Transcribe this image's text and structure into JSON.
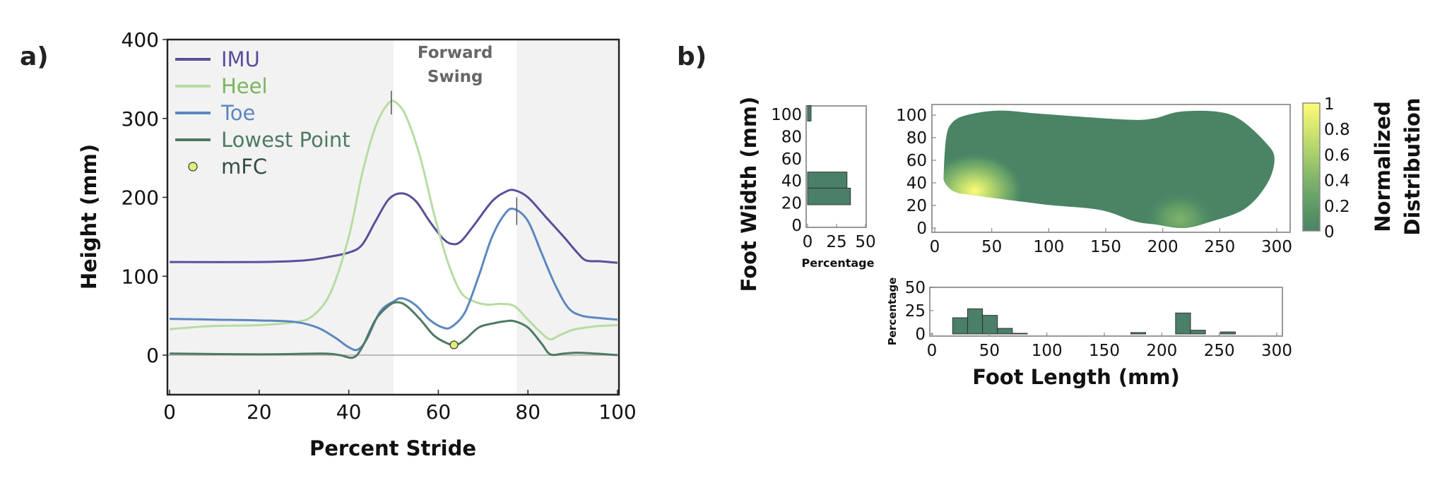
{
  "chart_data": [
    {
      "type": "line",
      "panel_label": "a)",
      "xlabel": "Percent Stride",
      "ylabel": "Height (mm)",
      "xlim": [
        0,
        100
      ],
      "ylim": [
        -50,
        400
      ],
      "xticks": [
        "0",
        "20",
        "40",
        "60",
        "80",
        "100"
      ],
      "yticks": [
        "0",
        "100",
        "200",
        "300",
        "400"
      ],
      "grid": false,
      "legend_placement": "top-left",
      "shaded_regions": [
        [
          0,
          50
        ],
        [
          77.5,
          100
        ]
      ],
      "shade_color": "#f2f2f2",
      "annotation": {
        "lines": [
          "Forward",
          "Swing"
        ],
        "x_range": [
          50,
          77.5
        ]
      },
      "series": [
        {
          "name": "IMU",
          "color": "#5a4e9a",
          "text_color": "#5a4e9a",
          "points": [
            [
              0,
              118
            ],
            [
              20,
              118
            ],
            [
              30,
              120
            ],
            [
              35,
              124
            ],
            [
              40,
              130
            ],
            [
              43,
              140
            ],
            [
              46,
              170
            ],
            [
              49,
              198
            ],
            [
              52,
              205
            ],
            [
              55,
              195
            ],
            [
              58,
              170
            ],
            [
              61,
              148
            ],
            [
              63,
              141
            ],
            [
              65,
              144
            ],
            [
              68,
              165
            ],
            [
              72,
              195
            ],
            [
              75,
              207
            ],
            [
              77,
              209
            ],
            [
              80,
              200
            ],
            [
              84,
              175
            ],
            [
              88,
              150
            ],
            [
              91,
              130
            ],
            [
              93,
              120
            ],
            [
              96,
              119
            ],
            [
              100,
              117
            ]
          ]
        },
        {
          "name": "Heel",
          "color": "#b7dca2",
          "text_color": "#7ab55c",
          "points": [
            [
              0,
              33
            ],
            [
              10,
              37
            ],
            [
              20,
              38
            ],
            [
              28,
              42
            ],
            [
              32,
              50
            ],
            [
              36,
              80
            ],
            [
              40,
              150
            ],
            [
              43,
              230
            ],
            [
              46,
              290
            ],
            [
              49,
              320
            ],
            [
              51,
              318
            ],
            [
              53,
              300
            ],
            [
              56,
              250
            ],
            [
              59,
              180
            ],
            [
              62,
              120
            ],
            [
              65,
              80
            ],
            [
              68,
              68
            ],
            [
              71,
              64
            ],
            [
              74,
              65
            ],
            [
              77,
              62
            ],
            [
              80,
              45
            ],
            [
              83,
              28
            ],
            [
              85,
              20
            ],
            [
              87,
              25
            ],
            [
              90,
              32
            ],
            [
              93,
              35
            ],
            [
              96,
              37
            ],
            [
              100,
              38
            ]
          ]
        },
        {
          "name": "Toe",
          "color": "#5b87c0",
          "text_color": "#5b87c0",
          "points": [
            [
              0,
              46
            ],
            [
              10,
              45
            ],
            [
              20,
              44
            ],
            [
              28,
              42
            ],
            [
              33,
              35
            ],
            [
              37,
              22
            ],
            [
              40,
              10
            ],
            [
              42,
              7
            ],
            [
              44,
              20
            ],
            [
              47,
              55
            ],
            [
              50,
              68
            ],
            [
              52,
              72
            ],
            [
              55,
              63
            ],
            [
              58,
              45
            ],
            [
              61,
              35
            ],
            [
              63,
              36
            ],
            [
              66,
              55
            ],
            [
              69,
              100
            ],
            [
              72,
              150
            ],
            [
              75,
              180
            ],
            [
              77,
              185
            ],
            [
              80,
              170
            ],
            [
              83,
              130
            ],
            [
              86,
              90
            ],
            [
              89,
              60
            ],
            [
              92,
              50
            ],
            [
              96,
              47
            ],
            [
              100,
              45
            ]
          ]
        },
        {
          "name": "Lowest Point",
          "color": "#4e7a62",
          "text_color": "#4e7a62",
          "points": [
            [
              0,
              2
            ],
            [
              20,
              1
            ],
            [
              34,
              2
            ],
            [
              38,
              0
            ],
            [
              41,
              -3
            ],
            [
              43,
              10
            ],
            [
              46,
              45
            ],
            [
              49,
              63
            ],
            [
              51,
              67
            ],
            [
              53,
              62
            ],
            [
              56,
              45
            ],
            [
              59,
              25
            ],
            [
              62,
              15
            ],
            [
              64,
              13
            ],
            [
              66,
              20
            ],
            [
              69,
              35
            ],
            [
              72,
              40
            ],
            [
              75,
              43
            ],
            [
              77,
              43
            ],
            [
              80,
              35
            ],
            [
              83,
              15
            ],
            [
              85,
              1
            ],
            [
              88,
              2
            ],
            [
              91,
              3
            ],
            [
              95,
              2
            ],
            [
              100,
              0
            ]
          ]
        }
      ],
      "marker": {
        "name": "mFC",
        "x": 63.5,
        "y": 13,
        "color": "#e3ee7a",
        "text_color": "#334d40"
      },
      "peak_marks": [
        {
          "x": 49.5,
          "y": [
            305,
            335
          ]
        },
        {
          "x": 77.5,
          "y": [
            165,
            200
          ]
        }
      ]
    },
    {
      "type": "heatmap",
      "panel_label": "b)",
      "ylabel": "Foot Width (mm)",
      "xlim": [
        0,
        300
      ],
      "ylim": [
        0,
        108
      ],
      "xticks": [
        "0",
        "50",
        "100",
        "150",
        "200",
        "250",
        "300"
      ],
      "yticks": [
        "0",
        "20",
        "40",
        "60",
        "80",
        "100"
      ],
      "outline": [
        [
          8,
          50
        ],
        [
          10,
          80
        ],
        [
          15,
          93
        ],
        [
          28,
          100
        ],
        [
          57,
          104
        ],
        [
          95,
          101
        ],
        [
          168,
          96
        ],
        [
          192,
          97
        ],
        [
          215,
          103
        ],
        [
          248,
          103
        ],
        [
          268,
          96
        ],
        [
          290,
          76
        ],
        [
          298,
          62
        ],
        [
          292,
          40
        ],
        [
          272,
          17
        ],
        [
          240,
          5
        ],
        [
          218,
          0
        ],
        [
          195,
          3
        ],
        [
          175,
          6
        ],
        [
          145,
          16
        ],
        [
          95,
          21
        ],
        [
          35,
          29
        ],
        [
          18,
          32
        ],
        [
          9,
          40
        ]
      ],
      "hotspots": [
        {
          "x": 35,
          "y": 33,
          "value": 1.0
        },
        {
          "x": 215,
          "y": 8,
          "value": 0.4
        }
      ],
      "colorbar": {
        "label": [
          "Normalized",
          "Distribution"
        ],
        "ticks": [
          "0",
          "0.2",
          "0.4",
          "0.6",
          "0.8",
          "1"
        ],
        "range": [
          0,
          1
        ],
        "colors": [
          "#4a8465",
          "#5f9a67",
          "#80b36a",
          "#a9cf6c",
          "#d3e76f",
          "#fffb78"
        ]
      }
    },
    {
      "type": "bar",
      "orientation": "horizontal",
      "xlabel": "Percentage",
      "xlim": [
        0,
        50
      ],
      "ylim": [
        0,
        108
      ],
      "xticks": [
        "0",
        "25",
        "50"
      ],
      "yticks": [
        "0",
        "20",
        "40",
        "60",
        "80",
        "100"
      ],
      "color": "#4a7f68",
      "bins": [
        [
          18.5,
          33.5,
          37
        ],
        [
          33.5,
          48,
          34
        ],
        [
          94,
          108,
          3
        ]
      ]
    },
    {
      "type": "bar",
      "orientation": "vertical",
      "xlabel": "Foot Length (mm)",
      "ylabel": "Percentage",
      "xlim": [
        0,
        300
      ],
      "ylim": [
        0,
        50
      ],
      "xticks": [
        "0",
        "50",
        "100",
        "150",
        "200",
        "250",
        "300"
      ],
      "yticks": [
        "0",
        "25",
        "50"
      ],
      "color": "#4a7f68",
      "bins": [
        [
          18,
          31,
          17.4
        ],
        [
          31,
          44,
          27
        ],
        [
          44,
          57,
          20
        ],
        [
          57,
          70,
          6
        ],
        [
          70,
          83,
          0.7
        ],
        [
          173,
          186,
          1.5
        ],
        [
          212,
          225,
          22.5
        ],
        [
          225,
          238,
          4
        ],
        [
          251,
          264,
          2.2
        ]
      ]
    }
  ]
}
